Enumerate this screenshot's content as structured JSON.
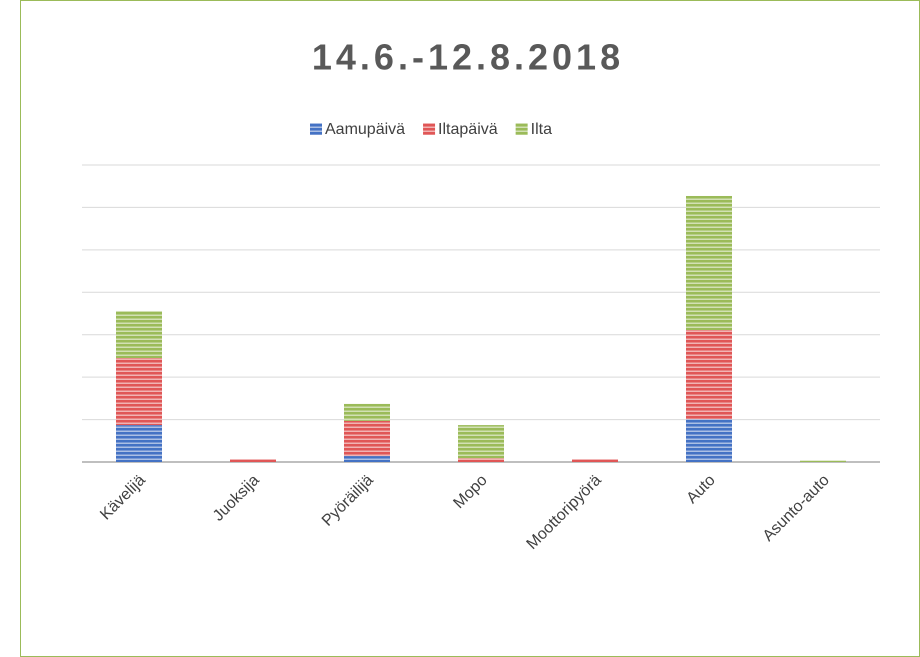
{
  "chart_data": {
    "type": "stacked_bar",
    "title": "14.6.-12.8.2018",
    "categories": [
      "Kävelijä",
      "Juoksija",
      "Pyöräilijä",
      "Mopo",
      "Moottoripyörä",
      "Auto",
      "Asunto-auto"
    ],
    "series": [
      {
        "name": "Aamupäivä",
        "color": "#4472c4",
        "values": [
          0.87,
          0,
          0.14,
          0,
          0,
          1.01,
          0
        ]
      },
      {
        "name": "Iltapäivä",
        "color": "#e05656",
        "values": [
          1.58,
          0.07,
          0.83,
          0.09,
          0.07,
          2.1,
          0
        ]
      },
      {
        "name": "Ilta",
        "color": "#9bbb59",
        "values": [
          1.11,
          0,
          0.4,
          0.78,
          0,
          3.16,
          0.03
        ]
      }
    ],
    "ylim": [
      0,
      7
    ],
    "yticks": [
      0,
      1,
      2,
      3,
      4,
      5,
      6,
      7
    ],
    "grid": true,
    "legend": "top"
  }
}
